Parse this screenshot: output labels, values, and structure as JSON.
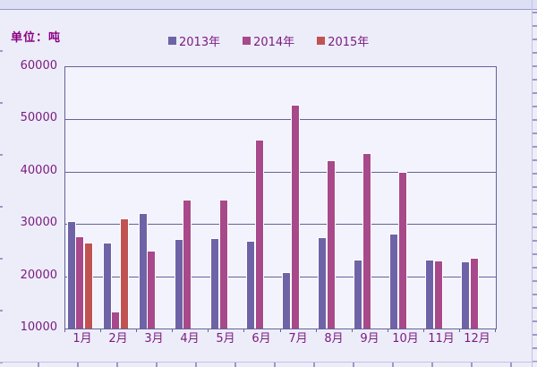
{
  "unit_label": "单位：吨",
  "colors": {
    "background": "#ecedf9",
    "plot_background": "#f3f3fd",
    "grid": "#63639a",
    "text": "#7c1a7e",
    "unit_text": "#8b0082"
  },
  "chart_data": {
    "type": "bar",
    "title": "",
    "unit": "单位：吨",
    "categories": [
      "1月",
      "2月",
      "3月",
      "4月",
      "5月",
      "6月",
      "7月",
      "8月",
      "9月",
      "10月",
      "11月",
      "12月"
    ],
    "series": [
      {
        "name": "2013年",
        "color": "#6f63a7",
        "values": [
          30600,
          26500,
          32100,
          27100,
          27300,
          26700,
          20800,
          27400,
          23200,
          28100,
          23100,
          22800
        ]
      },
      {
        "name": "2014年",
        "color": "#a8498b",
        "values": [
          27700,
          13300,
          24900,
          34700,
          34700,
          46200,
          52800,
          42200,
          43600,
          39900,
          23000,
          23600
        ]
      },
      {
        "name": "2015年",
        "color": "#c05351",
        "values": [
          26400,
          31100,
          null,
          null,
          null,
          null,
          null,
          null,
          null,
          null,
          null,
          null
        ]
      }
    ],
    "ylim": [
      10000,
      60000
    ],
    "yticks": [
      60000,
      50000,
      40000,
      30000,
      20000,
      10000
    ],
    "ytick_interval": 10000,
    "xlabel": "",
    "ylabel": "单位：吨",
    "grid": "horizontal",
    "legend_position": "top"
  }
}
